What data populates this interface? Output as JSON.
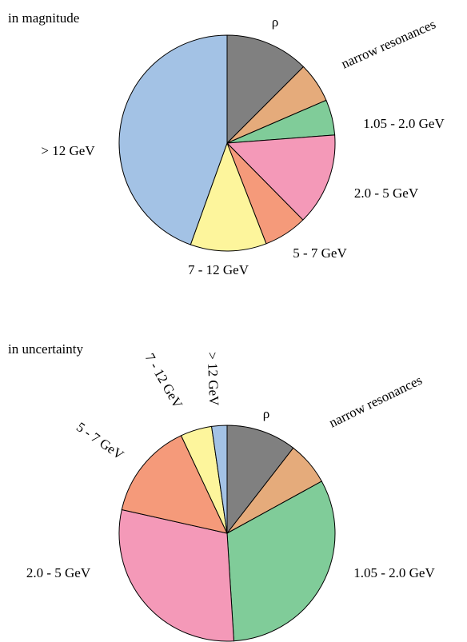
{
  "chart_data": [
    {
      "type": "pie",
      "title": "in magnitude",
      "slices": [
        {
          "label": "ρ",
          "value": 12.5,
          "color": "#808080"
        },
        {
          "label": "narrow resonances",
          "value": 6.0,
          "color": "#e5ab7b"
        },
        {
          "label": "1.05 - 2.0 GeV",
          "value": 5.3,
          "color": "#80cc99"
        },
        {
          "label": "2.0 - 5 GeV",
          "value": 13.8,
          "color": "#f499b8"
        },
        {
          "label": "5 - 7 GeV",
          "value": 6.5,
          "color": "#f59a7a"
        },
        {
          "label": "7 - 12 GeV",
          "value": 11.4,
          "color": "#fdf59c"
        },
        {
          "label": "> 12 GeV",
          "value": 44.5,
          "color": "#a3c2e5"
        }
      ]
    },
    {
      "type": "pie",
      "title": "in uncertainty",
      "slices": [
        {
          "label": "ρ",
          "value": 10.5,
          "color": "#808080"
        },
        {
          "label": "narrow resonances",
          "value": 6.5,
          "color": "#e5ab7b"
        },
        {
          "label": "1.05 - 2.0 GeV",
          "value": 32.0,
          "color": "#80cc99"
        },
        {
          "label": "2.0 - 5 GeV",
          "value": 29.5,
          "color": "#f499b8"
        },
        {
          "label": "5 - 7 GeV",
          "value": 14.5,
          "color": "#f59a7a"
        },
        {
          "label": "7 - 12 GeV",
          "value": 4.7,
          "color": "#fdf59c"
        },
        {
          "label": "> 12 GeV",
          "value": 2.3,
          "color": "#a3c2e5"
        }
      ]
    }
  ]
}
